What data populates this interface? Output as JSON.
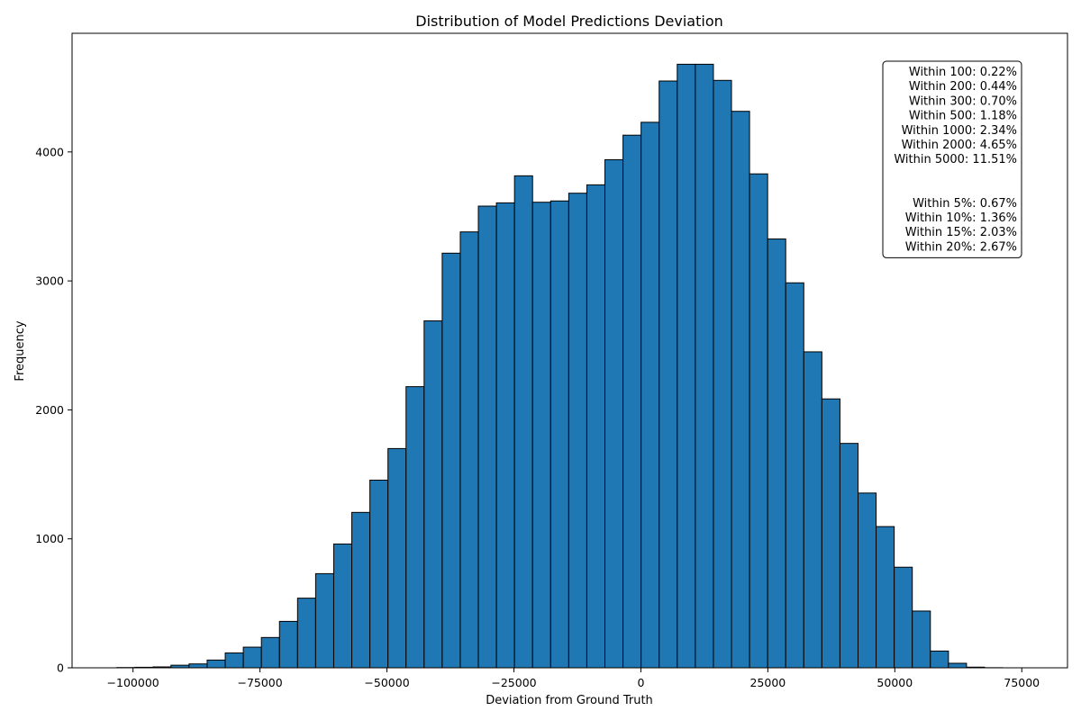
{
  "chart_data": {
    "type": "bar",
    "title": "Distribution of Model Predictions Deviation",
    "xlabel": "Deviation from Ground Truth",
    "ylabel": "Frequency",
    "bar_color": "#1f77b4",
    "edge_color": "#000000",
    "xlim": [
      -112000,
      84000
    ],
    "ylim": [
      0,
      4920
    ],
    "bin_start": -103200,
    "bin_width": 3560,
    "values": [
      2,
      4,
      7,
      20,
      30,
      60,
      115,
      160,
      235,
      360,
      540,
      730,
      960,
      1205,
      1455,
      1700,
      2180,
      2690,
      3215,
      3380,
      3580,
      3605,
      3815,
      3610,
      3620,
      3680,
      3745,
      3940,
      4130,
      4230,
      4550,
      4680,
      4680,
      4555,
      4315,
      3830,
      3325,
      2985,
      2450,
      2085,
      1740,
      1355,
      1095,
      780,
      440,
      130,
      35,
      5,
      1,
      0
    ],
    "x_ticks": [
      -100000,
      -75000,
      -50000,
      -25000,
      0,
      25000,
      50000,
      75000
    ],
    "x_tick_labels": [
      "−100000",
      "−75000",
      "−50000",
      "−25000",
      "0",
      "25000",
      "50000",
      "75000"
    ],
    "y_ticks": [
      0,
      1000,
      2000,
      3000,
      4000
    ],
    "y_tick_labels": [
      "0",
      "1000",
      "2000",
      "3000",
      "4000"
    ],
    "annotation_lines": [
      "Within 100: 0.22%",
      "Within 200: 0.44%",
      "Within 300: 0.70%",
      "Within 500: 1.18%",
      "Within 1000: 2.34%",
      "Within 2000: 4.65%",
      "Within 5000: 11.51%",
      "",
      "",
      "Within 5%: 0.67%",
      "Within 10%: 1.36%",
      "Within 15%: 2.03%",
      "Within 20%: 2.67%"
    ],
    "annotation_placement": "top-right",
    "grid": false
  }
}
